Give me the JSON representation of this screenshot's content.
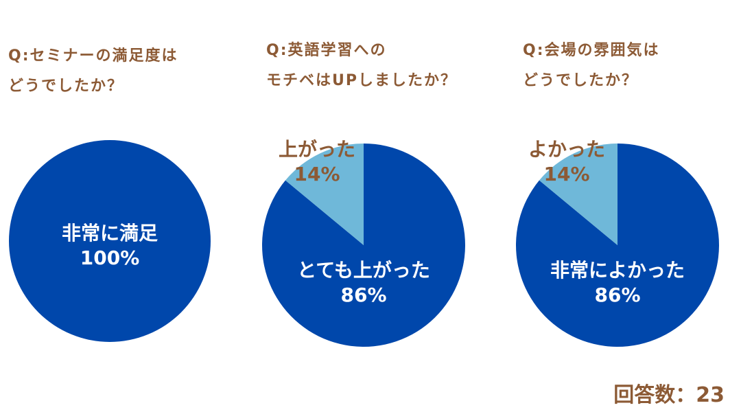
{
  "chart_data": [
    {
      "type": "pie",
      "title": "Q:セミナーの満足度は\nどうでしたか？",
      "slices": [
        {
          "label": "非常に満足",
          "value": 100,
          "value_label": "100%",
          "color": "#0047ab"
        }
      ]
    },
    {
      "type": "pie",
      "title": "Q:英語学習への\nモチベはUPしましたか？",
      "slices": [
        {
          "label": "とても上がった",
          "value": 86,
          "value_label": "86%",
          "color": "#0047ab"
        },
        {
          "label": "上がった",
          "value": 14,
          "value_label": "14%",
          "color": "#6fb8d9"
        }
      ]
    },
    {
      "type": "pie",
      "title": "Q:会場の雰囲気は\nどうでしたか？",
      "slices": [
        {
          "label": "非常によかった",
          "value": 86,
          "value_label": "86%",
          "color": "#0047ab"
        },
        {
          "label": "よかった",
          "value": 14,
          "value_label": "14%",
          "color": "#6fb8d9"
        }
      ]
    }
  ],
  "footer": {
    "respondents": "回答数：23"
  }
}
